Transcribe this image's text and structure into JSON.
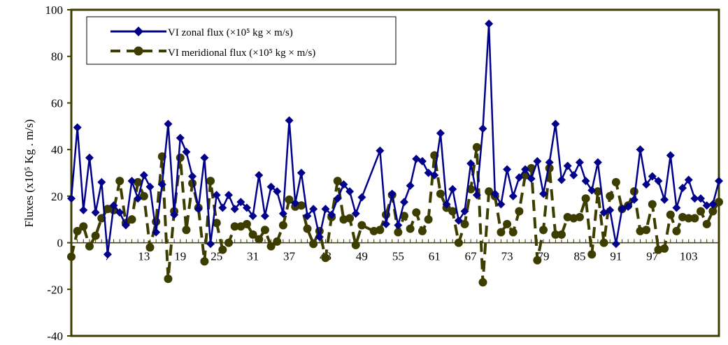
{
  "chart_data": {
    "type": "line",
    "title": "",
    "xlabel": "",
    "ylabel": "Fluxes (x10⁵ Kg . m/s)",
    "ylim": [
      -40,
      100
    ],
    "xlim": [
      1,
      108
    ],
    "y_ticks": [
      -40,
      -20,
      0,
      20,
      40,
      60,
      80,
      100
    ],
    "x_tick_labels": [
      1,
      7,
      13,
      19,
      25,
      31,
      37,
      43,
      49,
      55,
      61,
      67,
      73,
      79,
      85,
      91,
      97,
      103
    ],
    "grid": false,
    "legend_position": "top-left",
    "colors": {
      "zonal": "#00008b",
      "meridional": "#3d3d00",
      "axis": "#3d3d00"
    },
    "series": [
      {
        "name": "VI zonal flux (×10⁵ kg × m/s)",
        "style": "solid-diamond",
        "x": [
          1,
          2,
          3,
          4,
          5,
          6,
          7,
          8,
          9,
          10,
          11,
          12,
          13,
          14,
          15,
          16,
          17,
          18,
          19,
          20,
          21,
          22,
          23,
          24,
          25,
          26,
          27,
          28,
          29,
          30,
          31,
          32,
          33,
          34,
          35,
          36,
          37,
          38,
          39,
          40,
          41,
          42,
          43,
          44,
          45,
          46,
          47,
          48,
          49,
          52,
          53,
          54,
          55,
          56,
          57,
          58,
          59,
          60,
          61,
          62,
          63,
          64,
          65,
          66,
          67,
          68,
          69,
          70,
          71,
          72,
          73,
          74,
          75,
          76,
          77,
          78,
          79,
          80,
          81,
          82,
          83,
          84,
          85,
          86,
          87,
          88,
          89,
          90,
          91,
          92,
          93,
          94,
          95,
          96,
          97,
          98,
          99,
          100,
          101,
          102,
          103,
          104,
          105,
          106,
          107,
          108
        ],
        "values": [
          19,
          49.5,
          14,
          36.5,
          13,
          26,
          -5,
          16,
          13,
          7.5,
          26.5,
          19,
          29,
          24,
          4.5,
          25,
          51,
          12,
          45,
          39,
          28.5,
          14.5,
          36.5,
          -0.5,
          20.5,
          15,
          20.5,
          14.5,
          17.5,
          15,
          11.5,
          29,
          11.5,
          24,
          22,
          12.5,
          52.5,
          17,
          30,
          11.5,
          14.5,
          2.5,
          14.5,
          12,
          19,
          25,
          22,
          12.5,
          19.5,
          39.5,
          8,
          21,
          7.5,
          17.5,
          24.5,
          36,
          35,
          30,
          29,
          47,
          16.5,
          23,
          9.5,
          13.5,
          34,
          20.5,
          49,
          94,
          21,
          16.5,
          31.5,
          20,
          28,
          31.5,
          27.5,
          35,
          21,
          34.5,
          51,
          27,
          33,
          29,
          34.5,
          26.5,
          22.5,
          34.5,
          13,
          14,
          -0.5,
          14.5,
          15.5,
          18.5,
          40,
          25,
          28.5,
          26.5,
          18.5,
          37.5,
          15,
          23.5,
          27,
          19,
          19,
          16,
          16.5,
          26.5
        ]
      },
      {
        "name": "VI meridional flux (×10⁵ kg × m/s)",
        "style": "dashed-circle",
        "x": [
          1,
          2,
          3,
          4,
          5,
          6,
          7,
          8,
          9,
          10,
          11,
          12,
          13,
          14,
          15,
          16,
          17,
          18,
          19,
          20,
          21,
          22,
          23,
          24,
          25,
          26,
          27,
          28,
          29,
          30,
          31,
          32,
          33,
          34,
          35,
          36,
          37,
          38,
          39,
          40,
          41,
          42,
          43,
          44,
          45,
          46,
          47,
          48,
          49,
          51,
          52,
          53,
          54,
          55,
          56,
          57,
          58,
          59,
          60,
          61,
          62,
          63,
          64,
          65,
          66,
          67,
          68,
          69,
          70,
          71,
          72,
          73,
          74,
          75,
          76,
          77,
          78,
          79,
          80,
          81,
          82,
          83,
          84,
          85,
          86,
          87,
          88,
          89,
          90,
          91,
          92,
          93,
          94,
          95,
          96,
          97,
          98,
          99,
          100,
          101,
          102,
          103,
          104,
          105,
          106,
          107,
          108
        ],
        "values": [
          -6,
          5,
          7,
          -1.5,
          3,
          10.5,
          14.5,
          14,
          26.5,
          8.5,
          10,
          26,
          20,
          -2,
          9,
          37,
          -15.5,
          13.5,
          36.5,
          5.5,
          25.5,
          15,
          -8,
          26.5,
          8.5,
          -3,
          0,
          7,
          7,
          8,
          3.5,
          1.5,
          5.5,
          -1.5,
          0.5,
          7.5,
          18.5,
          15.5,
          16,
          6,
          -0.5,
          5,
          -6.5,
          11,
          26.5,
          10,
          10.5,
          -1,
          7.5,
          5,
          5.5,
          12,
          20.5,
          4.5,
          11.5,
          6,
          13,
          5,
          10,
          37.5,
          21,
          15,
          13.5,
          0,
          8,
          23,
          41,
          -17,
          22,
          20,
          4.5,
          8,
          4.5,
          13.5,
          29,
          32,
          -7.5,
          5.5,
          32,
          3.5,
          3.5,
          11,
          10.5,
          11,
          19,
          -5,
          22,
          0,
          20,
          26,
          14.5,
          16,
          22,
          5,
          5.5,
          16.5,
          -3,
          -2.5,
          12,
          5,
          11,
          10.5,
          10.5,
          13.5,
          8,
          13.5,
          17.5
        ]
      }
    ]
  }
}
